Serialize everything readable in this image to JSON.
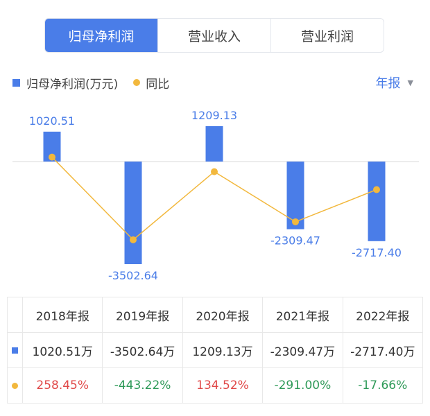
{
  "tabs": [
    {
      "label": "归母净利润",
      "active": true
    },
    {
      "label": "营业收入",
      "active": false
    },
    {
      "label": "营业利润",
      "active": false
    }
  ],
  "legend": {
    "bar_label": "归母净利润(万元)",
    "line_label": "同比"
  },
  "period_select": {
    "value": "年报",
    "caret": "▼"
  },
  "colors": {
    "bar": "#4a7de8",
    "line": "#f2b83d",
    "up": "#e04848",
    "down": "#2e9a58"
  },
  "chart_data": {
    "type": "bar",
    "categories": [
      "2018年报",
      "2019年报",
      "2020年报",
      "2021年报",
      "2022年报"
    ],
    "series": [
      {
        "name": "归母净利润(万元)",
        "type": "bar",
        "values": [
          1020.51,
          -3502.64,
          1209.13,
          -2309.47,
          -2717.4
        ],
        "labels": [
          "1020.51",
          "-3502.64",
          "1209.13",
          "-2309.47",
          "-2717.40"
        ]
      },
      {
        "name": "同比",
        "type": "line",
        "values": [
          258.45,
          -443.22,
          134.52,
          -291.0,
          -17.66
        ]
      }
    ],
    "legend_position": "top-left"
  },
  "table": {
    "headers": [
      "2018年报",
      "2019年报",
      "2020年报",
      "2021年报",
      "2022年报"
    ],
    "rows": [
      {
        "marker": "bar",
        "cells": [
          "1020.51万",
          "-3502.64万",
          "1209.13万",
          "-2309.47万",
          "-2717.40万"
        ]
      },
      {
        "marker": "line",
        "cells": [
          "258.45%",
          "-443.22%",
          "134.52%",
          "-291.00%",
          "-17.66%"
        ]
      }
    ]
  }
}
